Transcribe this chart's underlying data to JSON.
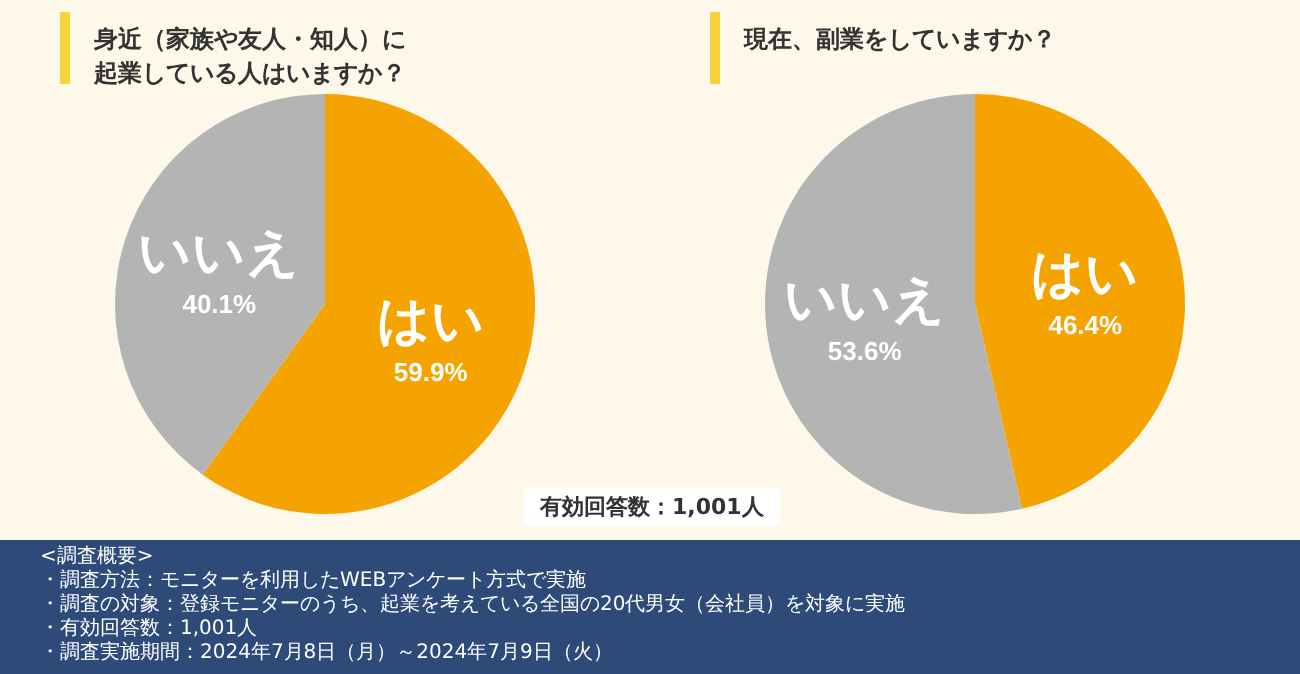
{
  "chart_data": [
    {
      "type": "pie",
      "title": "身近（家族や友人・知人）に起業している人はいますか？",
      "categories": [
        "はい",
        "いいえ"
      ],
      "values": [
        59.9,
        40.1
      ],
      "value_labels": [
        "59.9%",
        "40.1%"
      ],
      "colors": [
        "#f5a300",
        "#b4b4b4"
      ],
      "annotations": [
        "有効回答数：1,001人",
        "<調査概要>",
        "・調査方法：モニターを利用したWEBアンケート方式で実施",
        "・調査の対象：登録モニターのうち、起業を考えている全国の20代男女（会社員）を対象に実施",
        "・有効回答数：1,001人",
        "・調査実施期間：2024年7月8日（月）～2024年7月9日（火）"
      ]
    },
    {
      "type": "pie",
      "title": "現在、副業をしていますか？",
      "categories": [
        "はい",
        "いいえ"
      ],
      "values": [
        46.4,
        53.6
      ],
      "value_labels": [
        "46.4%",
        "53.6%"
      ],
      "colors": [
        "#f5a300",
        "#b4b4b4"
      ]
    }
  ]
}
